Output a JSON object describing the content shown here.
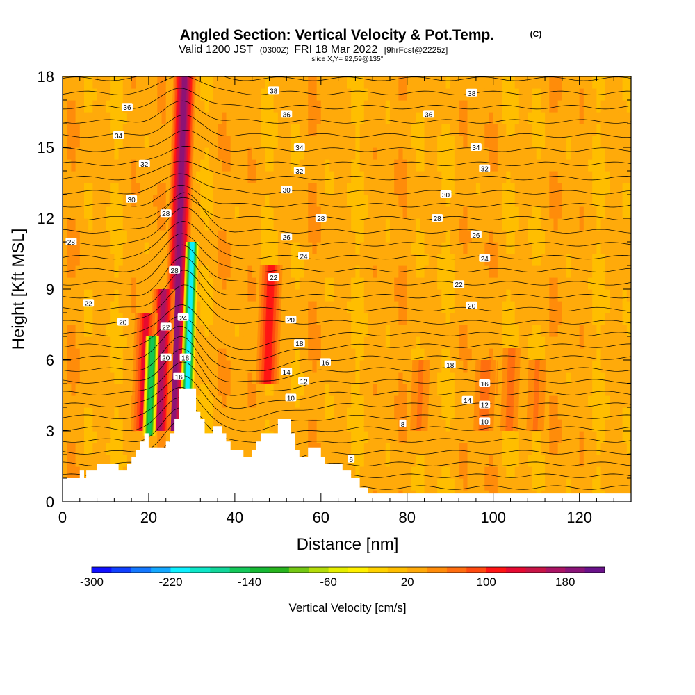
{
  "header": {
    "title": "Angled Section: Vertical Velocity & Pot.Temp.",
    "units": "(C)",
    "valid_prefix": "Valid 1200 JST",
    "valid_utc": "(0300Z)",
    "valid_date": "FRI 18 Mar 2022",
    "forecast": "[9hrFcst@2225z]",
    "slice": "slice X,Y= 92,59@135°"
  },
  "colorbar": {
    "title": "Vertical Velocity [cm/s]",
    "tick_labels": [
      "-300",
      "-220",
      "-140",
      "-60",
      "20",
      "100",
      "180"
    ],
    "colors": [
      "#1010ff",
      "#1040ff",
      "#1478ff",
      "#14a8ff",
      "#0ef0ff",
      "#0ee6c8",
      "#12d69a",
      "#14c85a",
      "#16b834",
      "#28b41e",
      "#74c814",
      "#b4dc0a",
      "#e6ee00",
      "#fff000",
      "#ffd200",
      "#ffbe00",
      "#ffaa0a",
      "#ff8c0a",
      "#ff6e10",
      "#ff4a10",
      "#ff1414",
      "#e60a32",
      "#c81446",
      "#aa1464",
      "#8a1478",
      "#6a128a"
    ]
  },
  "chart_data": {
    "type": "heatmap",
    "title": "Angled Section: Vertical Velocity & Pot.Temp. (C)",
    "xlabel": "Distance [nm]",
    "ylabel": "Height [Kft MSL]",
    "xlim": [
      0,
      132
    ],
    "ylim": [
      0,
      18
    ],
    "xticks": [
      0,
      20,
      40,
      60,
      80,
      100,
      120
    ],
    "yticks": [
      0,
      3,
      6,
      9,
      12,
      15,
      18
    ],
    "terrain_profile": [
      [
        0,
        1.0
      ],
      [
        4,
        1.0
      ],
      [
        4,
        1.35
      ],
      [
        5,
        1.35
      ],
      [
        5,
        1.0
      ],
      [
        5.5,
        1.0
      ],
      [
        5.5,
        1.35
      ],
      [
        8,
        1.35
      ],
      [
        8,
        1.6
      ],
      [
        13,
        1.6
      ],
      [
        13,
        1.35
      ],
      [
        15,
        1.35
      ],
      [
        15,
        1.6
      ],
      [
        16,
        1.6
      ],
      [
        16,
        1.9
      ],
      [
        17,
        1.9
      ],
      [
        17,
        2.2
      ],
      [
        18,
        2.2
      ],
      [
        18,
        2.55
      ],
      [
        19,
        2.55
      ],
      [
        19,
        2.9
      ],
      [
        20,
        2.9
      ],
      [
        20,
        2.3
      ],
      [
        24,
        2.3
      ],
      [
        24,
        2.55
      ],
      [
        25,
        2.55
      ],
      [
        25,
        2.9
      ],
      [
        26,
        2.9
      ],
      [
        26,
        3.5
      ],
      [
        27,
        3.5
      ],
      [
        27,
        4.8
      ],
      [
        31,
        4.8
      ],
      [
        31,
        3.8
      ],
      [
        32,
        3.8
      ],
      [
        32,
        3.5
      ],
      [
        33,
        3.5
      ],
      [
        33,
        2.9
      ],
      [
        35,
        2.9
      ],
      [
        35,
        3.2
      ],
      [
        37,
        3.2
      ],
      [
        37,
        2.9
      ],
      [
        38,
        2.9
      ],
      [
        38,
        2.55
      ],
      [
        39,
        2.55
      ],
      [
        39,
        2.2
      ],
      [
        42,
        2.2
      ],
      [
        42,
        1.9
      ],
      [
        44,
        1.9
      ],
      [
        44,
        2.2
      ],
      [
        45,
        2.2
      ],
      [
        45,
        2.55
      ],
      [
        46,
        2.55
      ],
      [
        46,
        2.9
      ],
      [
        50,
        2.9
      ],
      [
        50,
        3.5
      ],
      [
        53,
        3.5
      ],
      [
        53,
        2.9
      ],
      [
        54,
        2.9
      ],
      [
        54,
        2.2
      ],
      [
        55,
        2.2
      ],
      [
        55,
        1.9
      ],
      [
        57,
        1.9
      ],
      [
        57,
        2.3
      ],
      [
        60,
        2.3
      ],
      [
        60,
        1.9
      ],
      [
        61,
        1.9
      ],
      [
        61,
        1.6
      ],
      [
        65,
        1.6
      ],
      [
        65,
        1.35
      ],
      [
        67,
        1.35
      ],
      [
        67,
        1.0
      ],
      [
        69,
        1.0
      ],
      [
        69,
        0.6
      ],
      [
        71,
        0.6
      ],
      [
        71,
        0.35
      ],
      [
        132,
        0.35
      ]
    ],
    "vertical_velocity_features": [
      {
        "x_center": 27,
        "base": 3,
        "top": 18,
        "peak_cm_s": 180,
        "sign": "up"
      },
      {
        "x_center": 23,
        "base": 3,
        "top": 9,
        "peak_cm_s": 160,
        "sign": "up"
      },
      {
        "x_center": 19,
        "base": 3,
        "top": 8,
        "peak_cm_s": 120,
        "sign": "up"
      },
      {
        "x_center": 20.5,
        "base": 2.8,
        "top": 7,
        "peak_cm_s": -150,
        "sign": "down"
      },
      {
        "x_center": 29.5,
        "base": 4,
        "top": 11,
        "peak_cm_s": -220,
        "sign": "down"
      },
      {
        "x_center": 48,
        "base": 5,
        "top": 10,
        "peak_cm_s": 110,
        "sign": "up"
      },
      {
        "x_center": 83,
        "base": 3,
        "top": 6,
        "peak_cm_s": 60,
        "sign": "up"
      },
      {
        "x_center": 98,
        "base": 3,
        "top": 6,
        "peak_cm_s": 70,
        "sign": "up"
      },
      {
        "x_center": 104,
        "base": 3,
        "top": 6.5,
        "peak_cm_s": 65,
        "sign": "up"
      },
      {
        "x_center": 110,
        "base": 3,
        "top": 6,
        "peak_cm_s": 60,
        "sign": "up"
      }
    ],
    "contour_labels": [
      {
        "text": "38",
        "x": 49,
        "y": 17.4
      },
      {
        "text": "38",
        "x": 95,
        "y": 17.3
      },
      {
        "text": "36",
        "x": 15,
        "y": 16.7
      },
      {
        "text": "36",
        "x": 52,
        "y": 16.4
      },
      {
        "text": "36",
        "x": 85,
        "y": 16.4
      },
      {
        "text": "34",
        "x": 13,
        "y": 15.5
      },
      {
        "text": "34",
        "x": 55,
        "y": 15.0
      },
      {
        "text": "34",
        "x": 96,
        "y": 15.0
      },
      {
        "text": "32",
        "x": 19,
        "y": 14.3
      },
      {
        "text": "32",
        "x": 55,
        "y": 14.0
      },
      {
        "text": "32",
        "x": 98,
        "y": 14.1
      },
      {
        "text": "30",
        "x": 16,
        "y": 12.8
      },
      {
        "text": "30",
        "x": 52,
        "y": 13.2
      },
      {
        "text": "30",
        "x": 89,
        "y": 13.0
      },
      {
        "text": "28",
        "x": 24,
        "y": 12.2
      },
      {
        "text": "28",
        "x": 60,
        "y": 12.0
      },
      {
        "text": "28",
        "x": 87,
        "y": 12.0
      },
      {
        "text": "28",
        "x": 2,
        "y": 11.0
      },
      {
        "text": "28",
        "x": 26,
        "y": 9.8
      },
      {
        "text": "26",
        "x": 52,
        "y": 11.2
      },
      {
        "text": "26",
        "x": 96,
        "y": 11.3
      },
      {
        "text": "24",
        "x": 56,
        "y": 10.4
      },
      {
        "text": "24",
        "x": 98,
        "y": 10.3
      },
      {
        "text": "24",
        "x": 28,
        "y": 7.8
      },
      {
        "text": "22",
        "x": 49,
        "y": 9.5
      },
      {
        "text": "22",
        "x": 92,
        "y": 9.2
      },
      {
        "text": "22",
        "x": 6,
        "y": 8.4
      },
      {
        "text": "22",
        "x": 24,
        "y": 7.4
      },
      {
        "text": "20",
        "x": 14,
        "y": 7.6
      },
      {
        "text": "20",
        "x": 53,
        "y": 7.7
      },
      {
        "text": "20",
        "x": 95,
        "y": 8.3
      },
      {
        "text": "20",
        "x": 24,
        "y": 6.1
      },
      {
        "text": "18",
        "x": 28.5,
        "y": 6.1
      },
      {
        "text": "18",
        "x": 55,
        "y": 6.7
      },
      {
        "text": "18",
        "x": 90,
        "y": 5.8
      },
      {
        "text": "16",
        "x": 27,
        "y": 5.3
      },
      {
        "text": "16",
        "x": 61,
        "y": 5.9
      },
      {
        "text": "16",
        "x": 98,
        "y": 5.0
      },
      {
        "text": "14",
        "x": 52,
        "y": 5.5
      },
      {
        "text": "14",
        "x": 94,
        "y": 4.3
      },
      {
        "text": "12",
        "x": 56,
        "y": 5.1
      },
      {
        "text": "12",
        "x": 98,
        "y": 4.1
      },
      {
        "text": "10",
        "x": 53,
        "y": 4.4
      },
      {
        "text": "10",
        "x": 98,
        "y": 3.4
      },
      {
        "text": "8",
        "x": 79,
        "y": 3.3
      },
      {
        "text": "6",
        "x": 67,
        "y": 1.8
      }
    ]
  }
}
